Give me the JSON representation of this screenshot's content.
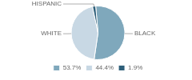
{
  "chart_data": {
    "type": "pie",
    "categories": [
      "53.7%",
      "44.4%",
      "1.9%"
    ],
    "values": [
      53.7,
      44.4,
      1.9
    ],
    "colors": [
      "#7fa8bc",
      "#c8d8e4",
      "#2e5f7a"
    ],
    "annotations": [
      "BLACK",
      "WHITE",
      "HISPANIC"
    ],
    "legend": "bottom"
  }
}
